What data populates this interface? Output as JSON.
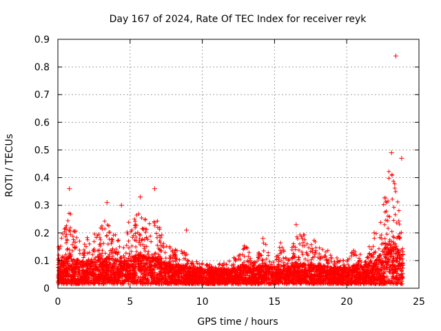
{
  "chart_data": {
    "type": "scatter",
    "title": "Day 167 of 2024, Rate Of TEC Index for receiver reyk",
    "xlabel": "GPS time / hours",
    "ylabel": "ROTI / TECUs",
    "xlim": [
      0,
      25
    ],
    "ylim": [
      0,
      0.9
    ],
    "x_ticks": [
      "0",
      "5",
      "10",
      "15",
      "20",
      "25"
    ],
    "y_ticks": [
      "0",
      "0.1",
      "0.2",
      "0.3",
      "0.4",
      "0.5",
      "0.6",
      "0.7",
      "0.8",
      "0.9"
    ],
    "grid": true,
    "marker": "+",
    "color": "#ff0000",
    "profile": {
      "x": [
        0,
        0.5,
        0.8,
        1.5,
        2.5,
        3.3,
        4.5,
        5.0,
        5.6,
        6.2,
        6.8,
        7.5,
        8.5,
        9.0,
        10.0,
        11.0,
        12.0,
        12.9,
        13.5,
        14.3,
        15.0,
        15.5,
        16.0,
        16.5,
        17.5,
        18.3,
        19.0,
        19.8,
        20.5,
        21.2,
        22.0,
        22.5,
        23.0,
        23.3,
        23.6,
        23.9
      ],
      "envelope": [
        0.18,
        0.22,
        0.3,
        0.17,
        0.2,
        0.25,
        0.18,
        0.26,
        0.28,
        0.24,
        0.26,
        0.16,
        0.14,
        0.12,
        0.09,
        0.09,
        0.1,
        0.17,
        0.1,
        0.17,
        0.1,
        0.18,
        0.12,
        0.21,
        0.18,
        0.16,
        0.12,
        0.1,
        0.14,
        0.12,
        0.2,
        0.3,
        0.45,
        0.4,
        0.3,
        0.16
      ],
      "median": [
        0.06,
        0.07,
        0.08,
        0.06,
        0.06,
        0.07,
        0.06,
        0.07,
        0.08,
        0.07,
        0.07,
        0.055,
        0.05,
        0.045,
        0.04,
        0.04,
        0.04,
        0.05,
        0.04,
        0.05,
        0.045,
        0.05,
        0.045,
        0.055,
        0.05,
        0.05,
        0.045,
        0.04,
        0.05,
        0.05,
        0.06,
        0.09,
        0.12,
        0.11,
        0.09,
        0.06
      ]
    },
    "highlights": [
      {
        "x": 23.4,
        "y": 0.84
      },
      {
        "x": 23.1,
        "y": 0.49
      },
      {
        "x": 23.8,
        "y": 0.47
      },
      {
        "x": 6.7,
        "y": 0.36
      },
      {
        "x": 0.8,
        "y": 0.36
      },
      {
        "x": 3.4,
        "y": 0.31
      },
      {
        "x": 5.7,
        "y": 0.33
      },
      {
        "x": 4.4,
        "y": 0.3
      },
      {
        "x": 8.9,
        "y": 0.21
      },
      {
        "x": 16.5,
        "y": 0.23
      },
      {
        "x": 14.2,
        "y": 0.18
      },
      {
        "x": 21.9,
        "y": 0.2
      }
    ]
  }
}
